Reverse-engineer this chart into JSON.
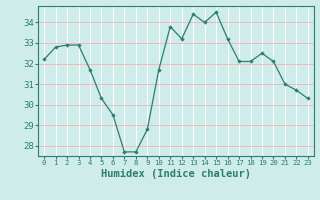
{
  "x": [
    0,
    1,
    2,
    3,
    4,
    5,
    6,
    7,
    8,
    9,
    10,
    11,
    12,
    13,
    14,
    15,
    16,
    17,
    18,
    19,
    20,
    21,
    22,
    23
  ],
  "y": [
    32.2,
    32.8,
    32.9,
    32.9,
    31.7,
    30.3,
    29.5,
    27.7,
    27.7,
    28.8,
    31.7,
    33.8,
    33.2,
    34.4,
    34.0,
    34.5,
    33.2,
    32.1,
    32.1,
    32.5,
    32.1,
    31.0,
    30.7,
    30.3
  ],
  "line_color": "#2e7d6e",
  "marker": "D",
  "marker_size": 1.8,
  "bg_color": "#ceecea",
  "grid_color": "#f5b8b8",
  "xlabel": "Humidex (Indice chaleur)",
  "ylim": [
    27.5,
    34.8
  ],
  "xlim": [
    -0.5,
    23.5
  ],
  "yticks": [
    28,
    29,
    30,
    31,
    32,
    33,
    34
  ],
  "xtick_labels": [
    "0",
    "1",
    "2",
    "3",
    "4",
    "5",
    "6",
    "7",
    "8",
    "9",
    "10",
    "11",
    "12",
    "13",
    "14",
    "15",
    "16",
    "17",
    "18",
    "19",
    "20",
    "21",
    "22",
    "23"
  ],
  "tick_color": "#2e7d6e",
  "label_color": "#2e7d6e",
  "xlabel_fontsize": 7.5,
  "ytick_fontsize": 6.5,
  "xtick_fontsize": 5.2
}
